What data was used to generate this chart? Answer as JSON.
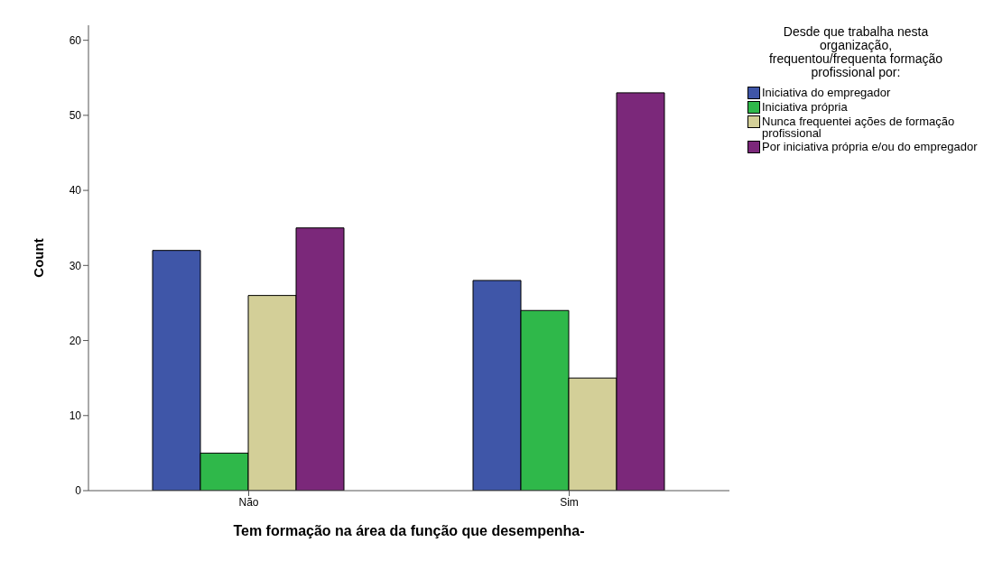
{
  "chart_data": {
    "type": "bar",
    "xlabel": "Tem formação na área da função que desempenha-",
    "ylabel": "Count",
    "legend_title": "Desde que trabalha nesta organização, frequentou/frequenta formação profissional por:",
    "categories": [
      "Não",
      "Sim"
    ],
    "series": [
      {
        "name": "Iniciativa do empregador",
        "color": "#3f56a8",
        "values": [
          32,
          28
        ]
      },
      {
        "name": "Iniciativa própria",
        "color": "#2fb84a",
        "values": [
          5,
          24
        ]
      },
      {
        "name": "Nunca frequentei ações de formação profissional",
        "color": "#d3cf98",
        "values": [
          26,
          15
        ]
      },
      {
        "name": "Por iniciativa própria e/ou do empregador",
        "color": "#7b287a",
        "values": [
          35,
          53
        ]
      }
    ],
    "ylim": [
      0,
      62
    ],
    "yticks": [
      0,
      10,
      20,
      30,
      40,
      50,
      60
    ],
    "grid": false,
    "legend": "top right"
  }
}
